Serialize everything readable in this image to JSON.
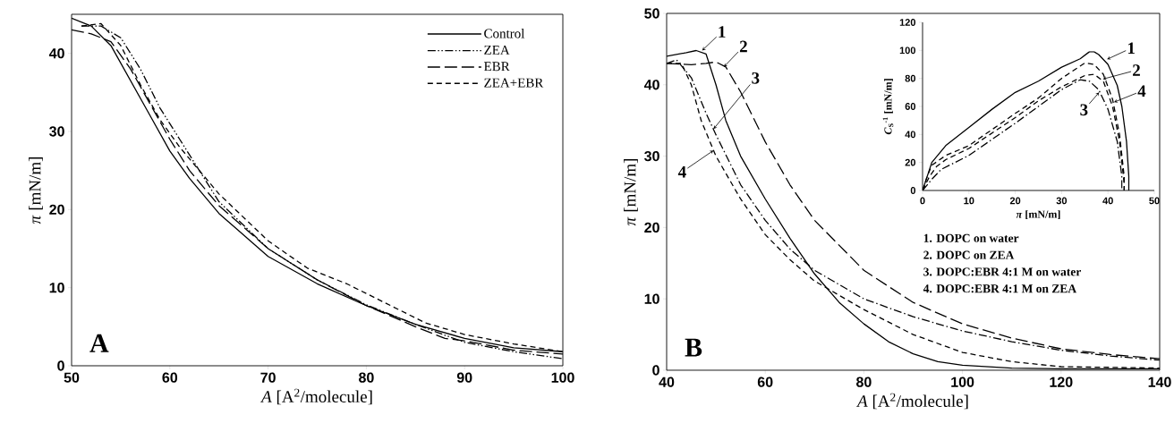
{
  "chart_data": [
    {
      "type": "line",
      "xlabel": "*A* [A$^{2}$/molecule]",
      "ylabel": "*π*  [mN/m]",
      "xlim": [
        50,
        100
      ],
      "ylim": [
        0,
        45
      ],
      "xticks": [
        50,
        60,
        70,
        80,
        90,
        100
      ],
      "yticks": [
        0,
        10,
        20,
        30,
        40
      ],
      "legend": "top right",
      "annotations": [
        "A"
      ],
      "series": [
        {
          "name": "Control",
          "color": "#000000",
          "line_style": "solid",
          "x": [
            50,
            52,
            54,
            56,
            58,
            60,
            62,
            65,
            70,
            75,
            80,
            85,
            90,
            95,
            100
          ],
          "values": [
            44.5,
            43.5,
            41,
            36.5,
            32,
            27.5,
            24,
            19.5,
            14,
            10.5,
            7.7,
            5.3,
            3.5,
            2.3,
            1.8
          ]
        },
        {
          "name": "ZEA",
          "color": "#000000",
          "line_style": "dashdotdotted",
          "x": [
            51,
            53,
            55,
            57,
            59,
            61,
            63,
            65,
            70,
            75,
            80,
            85,
            90,
            95,
            100
          ],
          "values": [
            43.5,
            43.5,
            42,
            38,
            33,
            29,
            25,
            21,
            15,
            11,
            7.8,
            5.3,
            3,
            1.8,
            0.9
          ]
        },
        {
          "name": "EBR",
          "color": "#000000",
          "line_style": "longdashed",
          "x": [
            50,
            52,
            54,
            56,
            58,
            60,
            62,
            65,
            70,
            75,
            80,
            85,
            88,
            90,
            95,
            100
          ],
          "values": [
            43,
            42.5,
            41.5,
            38,
            33.5,
            29,
            25,
            20.5,
            15,
            11,
            7.7,
            5,
            3.5,
            3.2,
            2,
            1.5
          ]
        },
        {
          "name": "ZEA+EBR",
          "color": "#000000",
          "line_style": "dashed",
          "x": [
            51,
            53,
            55,
            57,
            59,
            61,
            63,
            65,
            70,
            74,
            78,
            82,
            86,
            90,
            95,
            100
          ],
          "values": [
            43.5,
            43.8,
            41,
            36,
            31.5,
            28,
            25,
            22,
            16,
            12.5,
            10.5,
            8,
            5.5,
            4,
            2.8,
            1.8
          ]
        }
      ]
    },
    {
      "type": "line",
      "xlabel": "*A* [A$^{2}$/molecule]",
      "ylabel": "*π*  [mN/m]",
      "xlim": [
        40,
        140
      ],
      "ylim": [
        0,
        50
      ],
      "xticks": [
        40,
        60,
        80,
        100,
        120,
        140
      ],
      "yticks": [
        0,
        10,
        20,
        30,
        40,
        50
      ],
      "annotations": [
        "B",
        {
          "text": "1",
          "x": 47.2,
          "y": 44.8
        },
        {
          "text": "2",
          "x": 51.6,
          "y": 42.5
        },
        {
          "text": "3",
          "x": 49.5,
          "y": 33.8
        },
        {
          "text": "4",
          "x": 49.5,
          "y": 30.8
        },
        "1. DOPC on water",
        "2. DOPC on ZEA",
        "3. DOPC:EBR 4:1 M on water",
        "4. DOPC:EBR 4:1 M on ZEA"
      ],
      "series": [
        {
          "color": "#000000",
          "line_style": "solid",
          "x": [
            40,
            44,
            46,
            48,
            50,
            52,
            55,
            60,
            65,
            70,
            75,
            80,
            85,
            90,
            95,
            100,
            110,
            120,
            140
          ],
          "values": [
            44,
            44.5,
            44.8,
            44.3,
            40,
            35,
            30,
            24,
            18.5,
            13.5,
            9.5,
            6.5,
            4,
            2.3,
            1.2,
            0.7,
            0.3,
            0.2,
            0.2
          ]
        },
        {
          "color": "#000000",
          "line_style": "longdashed",
          "x": [
            40,
            45,
            48,
            50,
            52,
            55,
            60,
            65,
            70,
            80,
            90,
            100,
            110,
            120,
            130,
            140
          ],
          "values": [
            43,
            42.8,
            43,
            43.2,
            42.5,
            39,
            32,
            26,
            21,
            14,
            9.5,
            6.5,
            4.5,
            3,
            2.2,
            1.6
          ]
        },
        {
          "color": "#000000",
          "line_style": "dashdotted",
          "x": [
            40,
            42,
            45,
            48,
            50,
            55,
            60,
            65,
            70,
            80,
            90,
            100,
            110,
            120,
            130,
            140
          ],
          "values": [
            43,
            43.5,
            41,
            36,
            33,
            26,
            21,
            17,
            14,
            10,
            7.5,
            5.5,
            4,
            2.8,
            2,
            1.4
          ]
        },
        {
          "color": "#000000",
          "line_style": "dashed",
          "x": [
            40,
            43,
            45,
            47,
            50,
            55,
            60,
            65,
            70,
            80,
            90,
            100,
            110,
            120,
            140
          ],
          "values": [
            43,
            43,
            40,
            35,
            30,
            24,
            19,
            15.5,
            12.5,
            8.5,
            5,
            2.5,
            1.2,
            0.5,
            0.3
          ]
        }
      ]
    },
    {
      "type": "line",
      "xlabel": "*π* [mN/m]",
      "ylabel": "*C*$_{S}$$^{-1}$ [mN/m]",
      "xlim": [
        0,
        50
      ],
      "ylim": [
        0,
        120
      ],
      "xticks": [
        0,
        10,
        20,
        30,
        40,
        50
      ],
      "yticks": [
        0,
        20,
        40,
        60,
        80,
        100,
        120
      ],
      "annotations": [
        {
          "text": "1",
          "x": 39.8,
          "y": 93.6
        },
        {
          "text": "2",
          "x": 38.9,
          "y": 79.5
        },
        {
          "text": "4",
          "x": 41.3,
          "y": 63
        },
        {
          "text": "3",
          "x": 38.1,
          "y": 70
        }
      ],
      "series": [
        {
          "color": "#000000",
          "line_style": "solid",
          "x": [
            0,
            1,
            2,
            5,
            10,
            15,
            20,
            25,
            30,
            34,
            36,
            37,
            38,
            40,
            42,
            43,
            44,
            44.5,
            44.5
          ],
          "values": [
            0,
            10,
            20,
            32,
            45,
            58,
            70,
            78,
            88,
            94,
            99,
            99,
            97,
            90,
            75,
            60,
            35,
            10,
            0
          ]
        },
        {
          "color": "#000000",
          "line_style": "dashed",
          "x": [
            0,
            1,
            2,
            5,
            10,
            20,
            25,
            30,
            35,
            37,
            39,
            41,
            42.5,
            43.5,
            43.5
          ],
          "values": [
            0,
            10,
            18,
            25,
            32,
            55,
            66,
            80,
            91,
            90,
            83,
            65,
            40,
            10,
            0
          ]
        },
        {
          "color": "#000000",
          "line_style": "dashdotted",
          "x": [
            0,
            2,
            4,
            10,
            20,
            25,
            30,
            34,
            36,
            38,
            40,
            42,
            43,
            43
          ],
          "values": [
            0,
            8,
            15,
            25,
            48,
            60,
            72,
            79,
            78,
            72,
            58,
            35,
            10,
            0
          ]
        },
        {
          "color": "#000000",
          "line_style": "dashed",
          "x": [
            0,
            1.5,
            3,
            5,
            10,
            20,
            25,
            30,
            35,
            37,
            39,
            41,
            42.5,
            43.5,
            43.5
          ],
          "values": [
            0,
            10,
            17,
            22,
            30,
            52,
            64,
            74,
            82,
            83,
            78,
            60,
            35,
            5,
            0
          ]
        }
      ]
    }
  ]
}
